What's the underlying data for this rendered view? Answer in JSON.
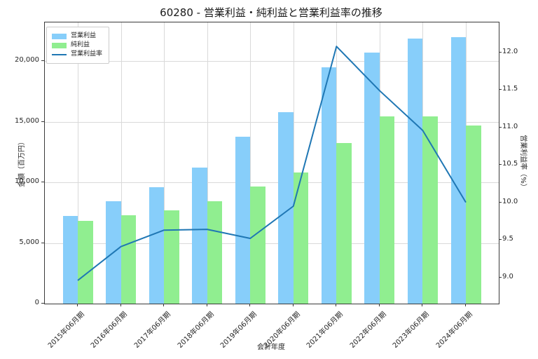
{
  "title": "60280 - 営業利益・純利益と営業利益率の推移",
  "colors": {
    "operating_profit_bar": "#87CEFA",
    "net_profit_bar": "#90EE90",
    "margin_line": "#1f77b4",
    "gridline": "#d9d9d9",
    "spine": "#3a3a3a",
    "background": "#ffffff"
  },
  "legend": {
    "position": "upper-left",
    "entries": [
      "営業利益",
      "純利益",
      "営業利益率"
    ]
  },
  "chart_data": {
    "type": "bar",
    "subtype": "grouped-bars-with-line",
    "title": "60280 - 営業利益・純利益と営業利益率の推移",
    "xlabel": "会計年度",
    "ylabel_left": "金額（百万円）",
    "ylabel_right": "営業利益率（%）",
    "grid": true,
    "categories": [
      "2015年06月期",
      "2016年06月期",
      "2017年06月期",
      "2018年06月期",
      "2019年06月期",
      "2020年06月期",
      "2021年06月期",
      "2022年06月期",
      "2023年06月期",
      "2024年06月期"
    ],
    "series": [
      {
        "name": "営業利益",
        "slug": "operating-profit",
        "type": "bar",
        "axis": "left",
        "color": "#87CEFA",
        "values": [
          7250,
          8450,
          9600,
          11250,
          13800,
          15800,
          19500,
          20700,
          21900,
          22000
        ]
      },
      {
        "name": "純利益",
        "slug": "net-profit",
        "type": "bar",
        "axis": "left",
        "color": "#90EE90",
        "values": [
          6850,
          7300,
          7700,
          8450,
          9650,
          10800,
          13250,
          15450,
          15450,
          14700
        ]
      },
      {
        "name": "営業利益率",
        "slug": "operating-margin",
        "type": "line",
        "axis": "right",
        "color": "#1f77b4",
        "values": [
          8.96,
          9.41,
          9.63,
          9.64,
          9.52,
          9.95,
          12.08,
          11.49,
          10.96,
          10.0
        ]
      }
    ],
    "left_axis": {
      "min": 0,
      "max": 23200,
      "ticks": [
        {
          "value": 0,
          "label": "0"
        },
        {
          "value": 5000,
          "label": "5,000"
        },
        {
          "value": 10000,
          "label": "10,000"
        },
        {
          "value": 15000,
          "label": "15,000"
        },
        {
          "value": 20000,
          "label": "20,000"
        }
      ]
    },
    "right_axis": {
      "min": 8.65,
      "max": 12.4,
      "ticks": [
        {
          "value": 9.0,
          "label": "9.0"
        },
        {
          "value": 9.5,
          "label": "9.5"
        },
        {
          "value": 10.0,
          "label": "10.0"
        },
        {
          "value": 10.5,
          "label": "10.5"
        },
        {
          "value": 11.0,
          "label": "11.0"
        },
        {
          "value": 11.5,
          "label": "11.5"
        },
        {
          "value": 12.0,
          "label": "12.0"
        }
      ]
    }
  }
}
